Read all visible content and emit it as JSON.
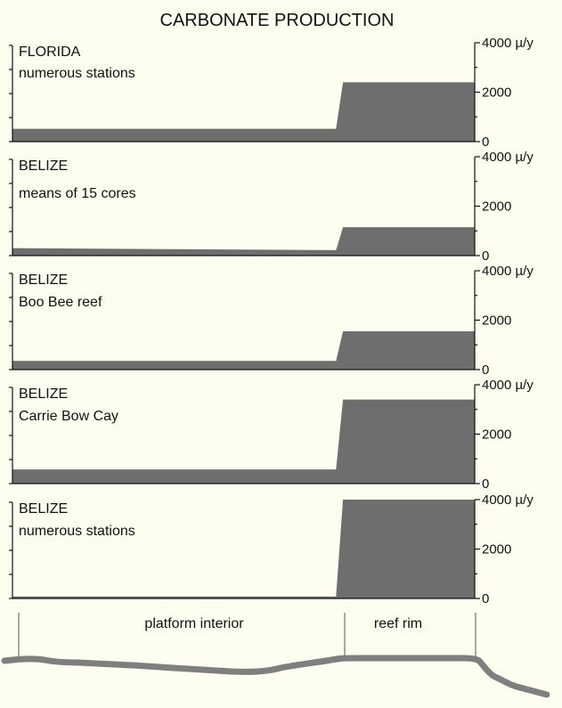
{
  "chart_data": {
    "type": "area",
    "title": "CARBONATE PRODUCTION",
    "unit": "µ/y",
    "x_domain": [
      0,
      100
    ],
    "ylim": [
      0,
      4000
    ],
    "yticks": [
      0,
      2000,
      4000
    ],
    "yticklabels": [
      "0",
      "2000",
      "4000 µ/y"
    ],
    "zones": [
      {
        "label": "platform interior",
        "x_start": 0,
        "x_end": 71
      },
      {
        "label": "reef rim",
        "x_start": 71,
        "x_end": 100
      }
    ],
    "panels": [
      {
        "region": "FLORIDA",
        "subtitle": "numerous stations",
        "x": [
          0,
          70,
          71.5,
          100
        ],
        "y": [
          520,
          520,
          2400,
          2400
        ]
      },
      {
        "region": "BELIZE",
        "subtitle": "means of 15 cores",
        "x": [
          0,
          70,
          71.5,
          100
        ],
        "y": [
          300,
          220,
          1150,
          1150
        ]
      },
      {
        "region": "BELIZE",
        "subtitle": "Boo Bee reef",
        "x": [
          0,
          70,
          71.5,
          100
        ],
        "y": [
          350,
          350,
          1550,
          1550
        ]
      },
      {
        "region": "BELIZE",
        "subtitle": "Carrie Bow Cay",
        "x": [
          0,
          70,
          71.5,
          100
        ],
        "y": [
          570,
          570,
          3400,
          3400
        ]
      },
      {
        "region": "BELIZE",
        "subtitle": "numerous stations",
        "x": [
          0,
          70,
          71.5,
          100
        ],
        "y": [
          80,
          80,
          4000,
          4000
        ]
      }
    ]
  }
}
